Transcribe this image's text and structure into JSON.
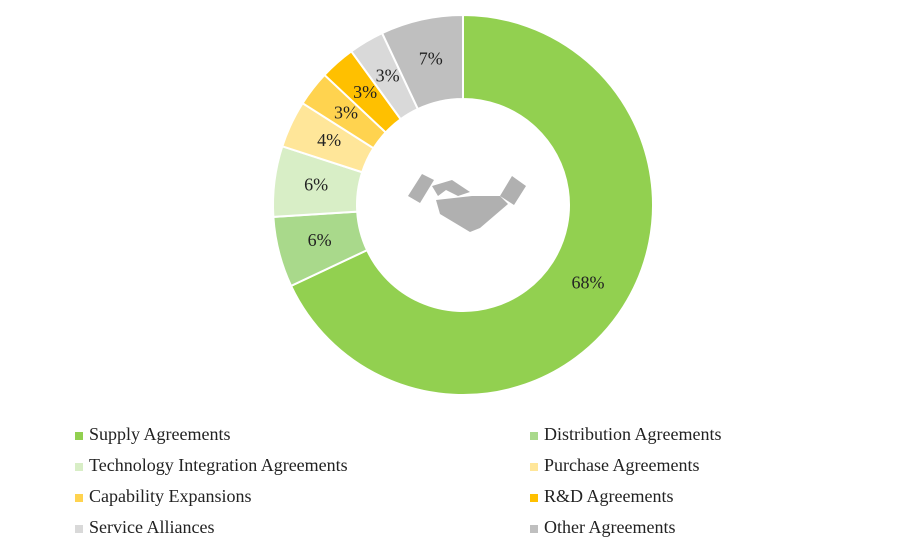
{
  "chart_data": {
    "type": "donut",
    "categories": [
      "Supply Agreements",
      "Distribution Agreements",
      "Technology Integration Agreements",
      "Purchase Agreements",
      "Capability Expansions",
      "R&D Agreements",
      "Service Alliances",
      "Other Agreements"
    ],
    "values": [
      68,
      6,
      6,
      4,
      3,
      3,
      3,
      7
    ],
    "value_labels": [
      "68%",
      "6%",
      "6%",
      "4%",
      "3%",
      "3%",
      "3%",
      "7%"
    ],
    "colors": [
      "#92d050",
      "#a9d98b",
      "#d8eec6",
      "#ffe699",
      "#ffd34f",
      "#ffc000",
      "#d9d9d9",
      "#bfbfbf"
    ]
  }
}
